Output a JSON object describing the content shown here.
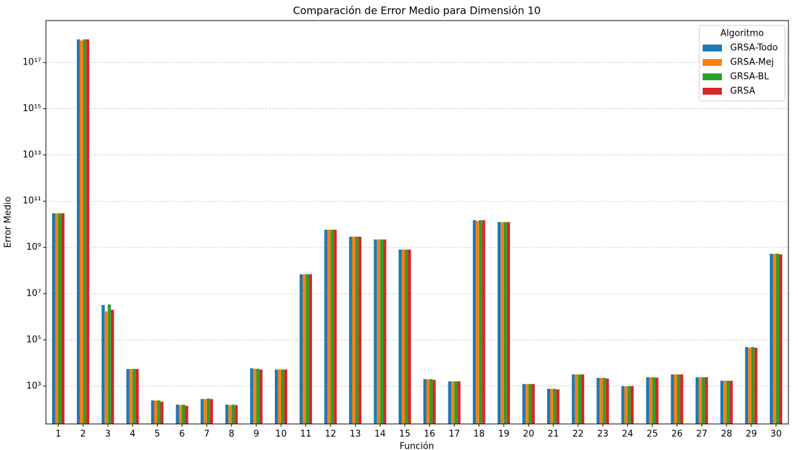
{
  "chart_data": {
    "type": "bar",
    "title": "Comparación de Error Medio para Dimensión 10",
    "x_label": "Función",
    "y_label": "Error Medio",
    "log_scale": true,
    "grid": true,
    "legend_title": "Algoritmo",
    "legend_position": "upper-right",
    "categories": [
      1,
      2,
      3,
      4,
      5,
      6,
      7,
      8,
      9,
      10,
      11,
      12,
      13,
      14,
      15,
      16,
      17,
      18,
      19,
      20,
      21,
      22,
      23,
      24,
      25,
      26,
      27,
      28,
      29,
      30
    ],
    "series": [
      {
        "name": "GRSA-Todo",
        "color": "#1f77b4",
        "values": [
          30000000000.0,
          1e+18,
          3200000.0,
          5500,
          240,
          158,
          275,
          158,
          5900,
          5200,
          69000000.0,
          5800000000.0,
          2900000000.0,
          2200000000.0,
          800000000.0,
          2000,
          1600,
          15000000000.0,
          12500000000.0,
          1230,
          760,
          3200,
          2270,
          1000,
          2400,
          3200,
          2400,
          1700,
          49000,
          530000000.0
        ]
      },
      {
        "name": "GRSA-Mej",
        "color": "#ff7f0e",
        "values": [
          30000000000.0,
          9e+17,
          1700000.0,
          5500,
          240,
          150,
          275,
          150,
          5600,
          5200,
          69000000.0,
          5800000000.0,
          2900000000.0,
          2200000000.0,
          800000000.0,
          1950,
          1600,
          14000000000.0,
          12500000000.0,
          1230,
          760,
          3200,
          2270,
          960,
          2400,
          3200,
          2400,
          1700,
          46000,
          530000000.0
        ]
      },
      {
        "name": "GRSA-BL",
        "color": "#2ca02c",
        "values": [
          30000000000.0,
          1e+18,
          3400000.0,
          5500,
          240,
          158,
          290,
          158,
          5600,
          5200,
          69000000.0,
          5800000000.0,
          2900000000.0,
          2200000000.0,
          800000000.0,
          2000,
          1600,
          15000000000.0,
          12500000000.0,
          1230,
          760,
          3200,
          2270,
          1000,
          2400,
          3200,
          2400,
          1700,
          49000,
          530000000.0
        ]
      },
      {
        "name": "GRSA",
        "color": "#d62728",
        "values": [
          30000000000.0,
          1e+18,
          2000000.0,
          5500,
          210,
          140,
          275,
          150,
          5200,
          5200,
          69000000.0,
          5800000000.0,
          2900000000.0,
          2200000000.0,
          800000000.0,
          1850,
          1600,
          15000000000.0,
          12500000000.0,
          1230,
          710,
          3200,
          2100,
          1000,
          2300,
          3200,
          2400,
          1700,
          45000,
          500000000.0
        ]
      }
    ],
    "ylim": [
      23,
      6.5e+18
    ],
    "yticks": [
      {
        "value": 1000,
        "label": "10³"
      },
      {
        "value": 100000,
        "label": "10⁵"
      },
      {
        "value": 10000000,
        "label": "10⁷"
      },
      {
        "value": 1000000000,
        "label": "10⁹"
      },
      {
        "value": 100000000000,
        "label": "10¹¹"
      },
      {
        "value": 10000000000000,
        "label": "10¹³"
      },
      {
        "value": 1000000000000000,
        "label": "10¹⁵"
      },
      {
        "value": 100000000000000000,
        "label": "10¹⁷"
      }
    ]
  }
}
